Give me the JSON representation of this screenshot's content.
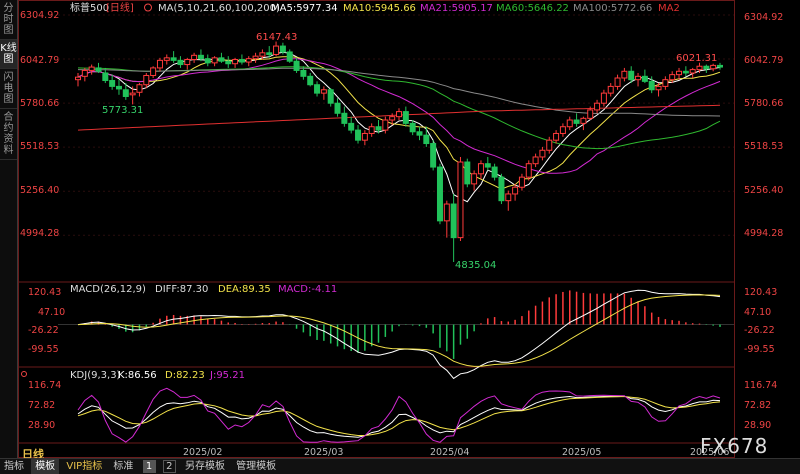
{
  "sidebar": {
    "tabs": [
      {
        "label": "分时图",
        "active": false
      },
      {
        "label": "K线图",
        "active": true
      },
      {
        "label": "闪电图",
        "active": false
      },
      {
        "label": "合约资料",
        "active": false
      }
    ]
  },
  "header": {
    "symbol": "标普500",
    "period_tag": "[日线]",
    "ma_params": "MA(5,10,21,60,100,200)",
    "ma5": "MA5:5977.34",
    "ma10": "MA10:5945.66",
    "ma21": "MA21:5905.17",
    "ma60": "MA60:5646.22",
    "ma100": "MA100:5772.66",
    "ma200": "MA2"
  },
  "price_axis": [
    "6304.92",
    "6042.79",
    "5780.66",
    "5518.53",
    "5256.40",
    "4994.28"
  ],
  "price_annotations": {
    "high1": "6147.43",
    "high2": "6021.31",
    "low1": "5773.31",
    "low2": "4835.04"
  },
  "macd_header": {
    "params": "MACD(26,12,9)",
    "diff": "DIFF:87.30",
    "dea": "DEA:89.35",
    "macd": "MACD:-4.11"
  },
  "macd_axis": [
    "120.43",
    "47.10",
    "-26.22",
    "-99.55"
  ],
  "kdj_header": {
    "params": "KDJ(9,3,3)",
    "k": "K:86.56",
    "d": "D:82.23",
    "j": "J:95.21"
  },
  "kdj_axis": [
    "116.74",
    "72.82",
    "28.90"
  ],
  "x_axis": [
    "2025/02",
    "2025/03",
    "2025/04",
    "2025/05",
    "2025/06"
  ],
  "period_label": "日线",
  "bottom_bar": {
    "items": [
      "指标",
      "模板",
      "VIP指标",
      "标准",
      "1",
      "2",
      "另存模板",
      "管理模板"
    ]
  },
  "logo": "FX678",
  "colors": {
    "up": "#ff3b3b",
    "down": "#21c25a",
    "ma5": "#ffffff",
    "ma10": "#f2e24a",
    "ma21": "#d22ad2",
    "ma60": "#2fb82f",
    "ma100": "#8a8a8a",
    "ma200": "#e03030"
  },
  "chart_data": {
    "type": "candlestick",
    "title": "标普500 [日线]",
    "ylim": [
      4835.04,
      6304.92
    ],
    "ohlc": [
      [
        5920,
        5960,
        5880,
        5935
      ],
      [
        5940,
        5990,
        5910,
        5975
      ],
      [
        5975,
        6010,
        5950,
        5995
      ],
      [
        5990,
        6020,
        5960,
        5970
      ],
      [
        5960,
        5990,
        5900,
        5915
      ],
      [
        5915,
        5950,
        5860,
        5880
      ],
      [
        5880,
        5920,
        5830,
        5865
      ],
      [
        5860,
        5900,
        5800,
        5820
      ],
      [
        5830,
        5880,
        5773,
        5840
      ],
      [
        5845,
        5900,
        5820,
        5890
      ],
      [
        5890,
        5960,
        5870,
        5945
      ],
      [
        5945,
        6000,
        5930,
        5990
      ],
      [
        5990,
        6050,
        5970,
        6035
      ],
      [
        6035,
        6070,
        6010,
        6050
      ],
      [
        6050,
        6090,
        6020,
        6035
      ],
      [
        6035,
        6060,
        5990,
        6010
      ],
      [
        6010,
        6050,
        5980,
        6040
      ],
      [
        6040,
        6080,
        6020,
        6065
      ],
      [
        6065,
        6100,
        6030,
        6045
      ],
      [
        6045,
        6070,
        6000,
        6020
      ],
      [
        6020,
        6060,
        6000,
        6050
      ],
      [
        6050,
        6080,
        6020,
        6030
      ],
      [
        6030,
        6060,
        5990,
        6015
      ],
      [
        6015,
        6050,
        5990,
        6040
      ],
      [
        6040,
        6070,
        6010,
        6025
      ],
      [
        6025,
        6060,
        6000,
        6045
      ],
      [
        6045,
        6080,
        6020,
        6060
      ],
      [
        6060,
        6100,
        6040,
        6080
      ],
      [
        6080,
        6120,
        6050,
        6070
      ],
      [
        6070,
        6147,
        6060,
        6120
      ],
      [
        6120,
        6140,
        6070,
        6085
      ],
      [
        6085,
        6100,
        6020,
        6030
      ],
      [
        6030,
        6050,
        5960,
        5975
      ],
      [
        5975,
        6000,
        5920,
        5940
      ],
      [
        5940,
        5960,
        5880,
        5890
      ],
      [
        5890,
        5910,
        5820,
        5840
      ],
      [
        5840,
        5880,
        5800,
        5860
      ],
      [
        5860,
        5870,
        5760,
        5780
      ],
      [
        5780,
        5810,
        5700,
        5720
      ],
      [
        5720,
        5760,
        5640,
        5660
      ],
      [
        5660,
        5700,
        5600,
        5620
      ],
      [
        5620,
        5650,
        5540,
        5560
      ],
      [
        5560,
        5620,
        5530,
        5600
      ],
      [
        5600,
        5660,
        5580,
        5640
      ],
      [
        5640,
        5680,
        5600,
        5620
      ],
      [
        5620,
        5700,
        5600,
        5680
      ],
      [
        5680,
        5720,
        5650,
        5700
      ],
      [
        5700,
        5750,
        5680,
        5730
      ],
      [
        5730,
        5760,
        5640,
        5660
      ],
      [
        5660,
        5680,
        5590,
        5610
      ],
      [
        5610,
        5640,
        5560,
        5590
      ],
      [
        5590,
        5640,
        5520,
        5540
      ],
      [
        5540,
        5560,
        5380,
        5400
      ],
      [
        5400,
        5420,
        5060,
        5080
      ],
      [
        5080,
        5200,
        4980,
        5180
      ],
      [
        5180,
        5240,
        4835,
        4980
      ],
      [
        4980,
        5460,
        4960,
        5430
      ],
      [
        5430,
        5450,
        5280,
        5300
      ],
      [
        5300,
        5380,
        5260,
        5360
      ],
      [
        5360,
        5440,
        5330,
        5420
      ],
      [
        5420,
        5460,
        5380,
        5400
      ],
      [
        5400,
        5420,
        5320,
        5340
      ],
      [
        5340,
        5360,
        5180,
        5200
      ],
      [
        5200,
        5260,
        5140,
        5240
      ],
      [
        5240,
        5300,
        5200,
        5280
      ],
      [
        5280,
        5360,
        5260,
        5340
      ],
      [
        5340,
        5440,
        5320,
        5420
      ],
      [
        5420,
        5480,
        5400,
        5460
      ],
      [
        5460,
        5520,
        5440,
        5500
      ],
      [
        5500,
        5580,
        5480,
        5560
      ],
      [
        5560,
        5620,
        5540,
        5600
      ],
      [
        5600,
        5660,
        5580,
        5640
      ],
      [
        5640,
        5700,
        5620,
        5680
      ],
      [
        5680,
        5720,
        5640,
        5660
      ],
      [
        5660,
        5700,
        5620,
        5690
      ],
      [
        5690,
        5760,
        5680,
        5740
      ],
      [
        5740,
        5800,
        5720,
        5780
      ],
      [
        5780,
        5860,
        5760,
        5840
      ],
      [
        5840,
        5900,
        5820,
        5880
      ],
      [
        5880,
        5950,
        5860,
        5930
      ],
      [
        5930,
        5990,
        5910,
        5970
      ],
      [
        5970,
        6000,
        5900,
        5920
      ],
      [
        5920,
        5960,
        5880,
        5940
      ],
      [
        5940,
        5980,
        5900,
        5910
      ],
      [
        5910,
        5940,
        5840,
        5860
      ],
      [
        5860,
        5900,
        5820,
        5880
      ],
      [
        5880,
        5940,
        5860,
        5920
      ],
      [
        5920,
        5970,
        5900,
        5950
      ],
      [
        5950,
        5990,
        5920,
        5970
      ],
      [
        5970,
        6000,
        5940,
        5960
      ],
      [
        5960,
        5990,
        5930,
        5980
      ],
      [
        5980,
        6021,
        5960,
        6000
      ],
      [
        6000,
        6010,
        5960,
        5985
      ],
      [
        5985,
        6015,
        5970,
        6005
      ],
      [
        6005,
        6020,
        5980,
        5995
      ]
    ]
  }
}
